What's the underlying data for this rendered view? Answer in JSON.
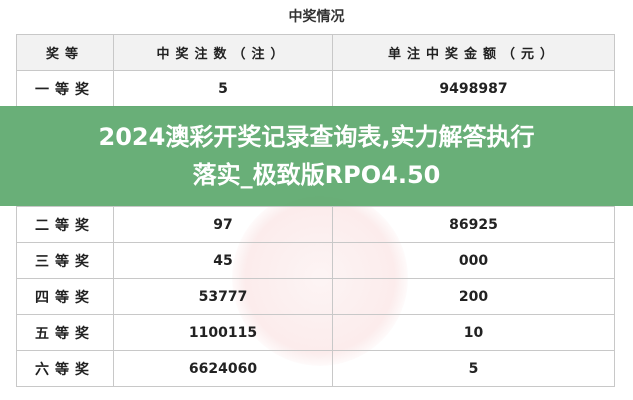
{
  "title": "中奖情况",
  "table": {
    "headers": [
      "奖等",
      "中奖注数（注）",
      "单注中奖金额（元）"
    ],
    "rows": [
      {
        "level": "一等奖",
        "count": "5",
        "amount": "9498987"
      },
      {
        "level": "二等奖",
        "count": "97",
        "amount": "86925"
      },
      {
        "level": "三等奖",
        "count": "45",
        "amount": "000"
      },
      {
        "level": "四等奖",
        "count": "53777",
        "amount": "200"
      },
      {
        "level": "五等奖",
        "count": "1100115",
        "amount": "10"
      },
      {
        "level": "六等奖",
        "count": "6624060",
        "amount": "5"
      }
    ]
  },
  "headline": {
    "line1": "2024澳彩开奖记录查询表,实力解答执行",
    "line2": "落实_极致版RPO4.50"
  },
  "colors": {
    "banner": "#5ca86c",
    "header_bg": "#f2f2f2"
  }
}
